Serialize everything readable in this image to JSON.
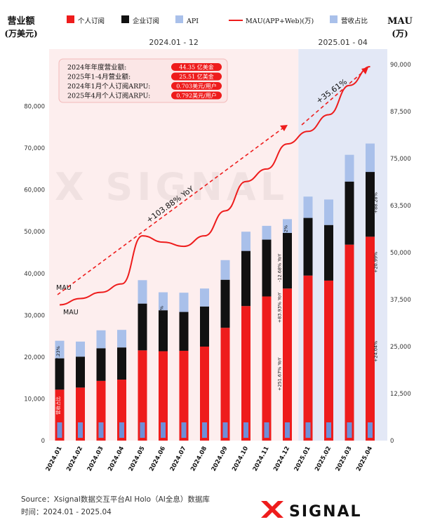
{
  "chart_data": {
    "type": "bar",
    "stacked": true,
    "left_axis_title": [
      "营业额",
      "(万美元)"
    ],
    "right_axis_title": [
      "MAU",
      "(万)"
    ],
    "legend": [
      {
        "label": "个人订阅",
        "color": "#ee1c1c"
      },
      {
        "label": "企业订阅",
        "color": "#111111"
      },
      {
        "label": "API",
        "color": "#a9c0ea"
      },
      {
        "label": "MAU(APP+Web)(万)",
        "color": "#ee1c1c"
      },
      {
        "label": "营收占比",
        "color": "#a9c0ea"
      }
    ],
    "period_labels": [
      "2024.01 - 12",
      "2025.01 - 04"
    ],
    "categories": [
      "2024.01",
      "2024.02",
      "2024.03",
      "2024.04",
      "2024.05",
      "2024.06",
      "2024.07",
      "2024.08",
      "2024.09",
      "2024.10",
      "2024.11",
      "2024.12",
      "2025.01",
      "2025.02",
      "2025.03",
      "2025.04"
    ],
    "series": [
      {
        "name": "个人订阅",
        "values": [
          12200,
          12700,
          14300,
          14600,
          21600,
          21400,
          21500,
          22500,
          27000,
          32200,
          34500,
          36400,
          39500,
          38300,
          46900,
          48800
        ]
      },
      {
        "name": "企业订阅",
        "values": [
          7500,
          7400,
          7800,
          7700,
          11200,
          9800,
          9300,
          9600,
          11500,
          13200,
          13600,
          13300,
          13800,
          13300,
          15100,
          15500
        ]
      },
      {
        "name": "API",
        "values": [
          4200,
          3600,
          4300,
          4200,
          5600,
          4300,
          4600,
          4300,
          4700,
          4600,
          3300,
          3300,
          5100,
          6100,
          6400,
          6800
        ]
      }
    ],
    "mau_series": {
      "name": "MAU(APP+Web)(万)",
      "values": [
        32500,
        34000,
        35500,
        37500,
        49000,
        47500,
        46500,
        49000,
        55000,
        62000,
        65000,
        71000,
        74000,
        78000,
        85000,
        89500
      ]
    },
    "ylim": [
      0,
      90000
    ],
    "yticks": [
      "0",
      "10,000",
      "20,000",
      "30,000",
      "40,000",
      "50,000",
      "60,000",
      "70,000",
      "80,000"
    ],
    "y2lim": [
      0,
      90000
    ],
    "y2ticks": [
      "0",
      "12,500",
      "25,000",
      "37,500",
      "50,000",
      "63,500",
      "75,000",
      "87,500",
      "90,000"
    ],
    "annotation_box": [
      {
        "label": "2024年年度营业额:",
        "value": "44.35 亿美金"
      },
      {
        "label": "2025年1-4月营业额:",
        "value": "25.51 亿美金"
      },
      {
        "label": "2024年1月个人订阅ARPU:",
        "value": "0.703美元/用户"
      },
      {
        "label": "2025年4月个人订阅ARPU:",
        "value": "0.792美元/用户"
      }
    ],
    "growth_labels": {
      "mau_yoy": "+103.88% YoY",
      "mau_2025": "+35.61%",
      "mau_label": "MAU"
    },
    "bar_annotations": [
      {
        "text": "17.23%"
      },
      {
        "text": "营收占比"
      },
      {
        "text": "12.66%"
      },
      {
        "text": "7.52%"
      },
      {
        "text": "-12.68% YoY"
      },
      {
        "text": "+83.93% YoY"
      },
      {
        "text": "+251.67% YoY"
      },
      {
        "text": "+88.28%"
      },
      {
        "text": "+20.99%"
      },
      {
        "text": "+24.04%"
      }
    ],
    "source": "Source：Xsignal数据交互平台AI Holo（AI全息）数据库",
    "time_range": "时间：2024.01 - 2025.04",
    "brand": "SIGNAL",
    "watermark": "SIGNAL"
  }
}
